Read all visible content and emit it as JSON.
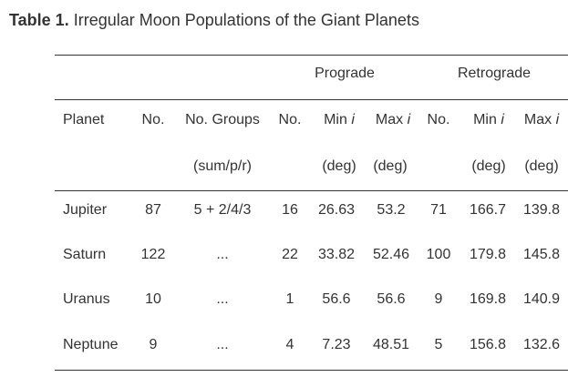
{
  "caption": {
    "label": "Table 1.",
    "text": "Irregular Moon Populations of the Giant Planets"
  },
  "table": {
    "group_headers": {
      "prograde": "Prograde",
      "retrograde": "Retrograde"
    },
    "headers": {
      "planet": "Planet",
      "no": "No.",
      "no_groups": "No. Groups",
      "pro_no": "No.",
      "pro_min": "Min",
      "pro_max": "Max",
      "retro_no": "No.",
      "retro_min": "Min",
      "retro_max": "Max",
      "inclination_symbol": "i"
    },
    "units": {
      "no_groups": "(sum/p/r)",
      "pro_min": "(deg)",
      "pro_max": "(deg)",
      "retro_min": "(deg)",
      "retro_max": "(deg)"
    },
    "rows": [
      {
        "planet": "Jupiter",
        "no": "87",
        "groups": "5 + 2/4/3",
        "pro_no": "16",
        "pro_min": "26.63",
        "pro_max": "53.2",
        "retro_no": "71",
        "retro_min": "166.7",
        "retro_max": "139.8"
      },
      {
        "planet": "Saturn",
        "no": "122",
        "groups": "...",
        "pro_no": "22",
        "pro_min": "33.82",
        "pro_max": "52.46",
        "retro_no": "100",
        "retro_min": "179.8",
        "retro_max": "145.8"
      },
      {
        "planet": "Uranus",
        "no": "10",
        "groups": "...",
        "pro_no": "1",
        "pro_min": "56.6",
        "pro_max": "56.6",
        "retro_no": "9",
        "retro_min": "169.8",
        "retro_max": "140.9"
      },
      {
        "planet": "Neptune",
        "no": "9",
        "groups": "...",
        "pro_no": "4",
        "pro_min": "7.23",
        "pro_max": "48.51",
        "retro_no": "5",
        "retro_min": "156.8",
        "retro_max": "132.6"
      }
    ]
  }
}
